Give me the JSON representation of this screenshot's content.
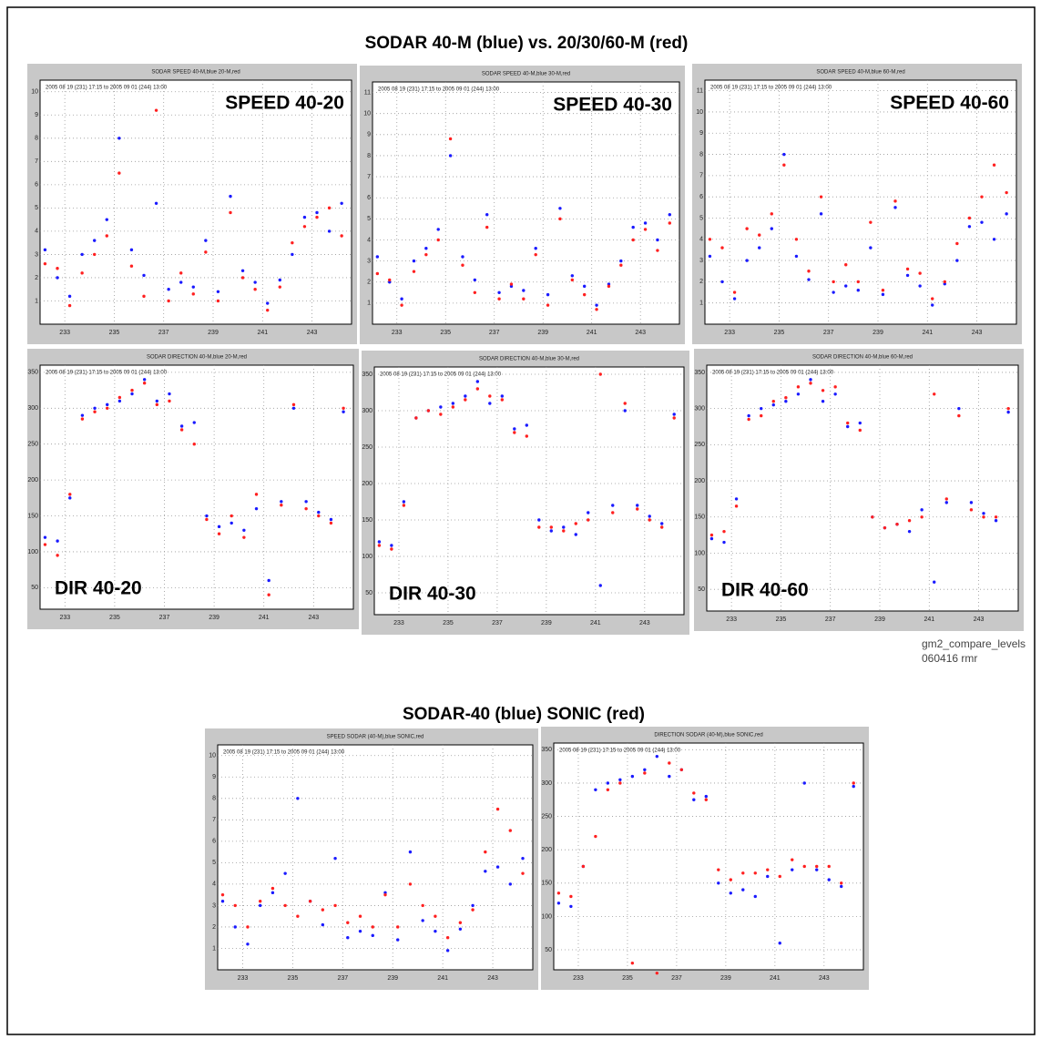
{
  "header": {
    "title": "SODAR 40-M (blue)  vs. 20/30/60-M (red)",
    "title2": "SODAR-40 (blue)  SONIC (red)",
    "note1": "gm2_compare_levels",
    "note2": "060416    rmr"
  },
  "chart_data": [
    {
      "type": "scatter",
      "title": "SODAR SPEED 40-M,blue 20-M,red",
      "subtitle": "2005 08 19 (231) 17:15  to  2005 09 01 (244) 13:00",
      "label": "SPEED 40-20",
      "label_corner": "top-right",
      "grid": true,
      "x": [
        232.2,
        232.7,
        233.2,
        233.7,
        234.2,
        234.7,
        235.2,
        235.7,
        236.2,
        236.7,
        237.2,
        237.7,
        238.2,
        238.7,
        239.2,
        239.7,
        240.2,
        240.7,
        241.2,
        241.7,
        242.2,
        242.7,
        243.2,
        243.7,
        244.2
      ],
      "xlim": [
        232,
        244.6
      ],
      "xticks": [
        233,
        235,
        237,
        239,
        241,
        243
      ],
      "ylim": [
        0,
        10.5
      ],
      "yticks": [
        1,
        2,
        3,
        4,
        5,
        6,
        7,
        8,
        9,
        10
      ],
      "series": [
        {
          "color": "#1a1aff",
          "values": [
            3.2,
            2.0,
            1.2,
            3.0,
            3.6,
            4.5,
            8.0,
            3.2,
            2.1,
            5.2,
            1.5,
            1.8,
            1.6,
            3.6,
            1.4,
            5.5,
            2.3,
            1.8,
            0.9,
            1.9,
            3.0,
            4.6,
            4.8,
            4.0,
            5.2
          ]
        },
        {
          "color": "#ff2020",
          "values": [
            2.6,
            2.4,
            0.8,
            2.2,
            3.0,
            3.8,
            6.5,
            2.5,
            1.2,
            9.2,
            1.0,
            2.2,
            1.3,
            3.1,
            1.0,
            4.8,
            2.0,
            1.5,
            0.6,
            1.6,
            3.5,
            4.2,
            4.6,
            5.0,
            3.8
          ]
        }
      ]
    },
    {
      "type": "scatter",
      "title": "SODAR SPEED 40-M,blue 30-M,red",
      "subtitle": "2005 08 19 (231) 17:15  to  2005 09 01 (244) 13:00",
      "label": "SPEED 40-30",
      "label_corner": "top-right",
      "grid": true,
      "x": [
        232.2,
        232.7,
        233.2,
        233.7,
        234.2,
        234.7,
        235.2,
        235.7,
        236.2,
        236.7,
        237.2,
        237.7,
        238.2,
        238.7,
        239.2,
        239.7,
        240.2,
        240.7,
        241.2,
        241.7,
        242.2,
        242.7,
        243.2,
        243.7,
        244.2
      ],
      "xlim": [
        232,
        244.6
      ],
      "xticks": [
        233,
        235,
        237,
        239,
        241,
        243
      ],
      "ylim": [
        0,
        11.5
      ],
      "yticks": [
        1,
        2,
        3,
        4,
        5,
        6,
        7,
        8,
        9,
        10,
        11
      ],
      "series": [
        {
          "color": "#1a1aff",
          "values": [
            3.2,
            2.0,
            1.2,
            3.0,
            3.6,
            4.5,
            8.0,
            3.2,
            2.1,
            5.2,
            1.5,
            1.8,
            1.6,
            3.6,
            1.4,
            5.5,
            2.3,
            1.8,
            0.9,
            1.9,
            3.0,
            4.6,
            4.8,
            4.0,
            5.2
          ]
        },
        {
          "color": "#ff2020",
          "values": [
            2.4,
            2.1,
            0.9,
            2.5,
            3.3,
            4.0,
            8.8,
            2.8,
            1.5,
            4.6,
            1.2,
            1.9,
            1.2,
            3.3,
            0.9,
            5.0,
            2.1,
            1.4,
            0.7,
            1.8,
            2.8,
            4.0,
            4.5,
            3.5,
            4.8
          ]
        }
      ]
    },
    {
      "type": "scatter",
      "title": "SODAR SPEED 40-M,blue 60-M,red",
      "subtitle": "2005 08 19 (231) 17:15  to  2005 09 01 (244) 13:00",
      "label": "SPEED 40-60",
      "label_corner": "top-right",
      "grid": true,
      "x": [
        232.2,
        232.7,
        233.2,
        233.7,
        234.2,
        234.7,
        235.2,
        235.7,
        236.2,
        236.7,
        237.2,
        237.7,
        238.2,
        238.7,
        239.2,
        239.7,
        240.2,
        240.7,
        241.2,
        241.7,
        242.2,
        242.7,
        243.2,
        243.7,
        244.2
      ],
      "xlim": [
        232,
        244.6
      ],
      "xticks": [
        233,
        235,
        237,
        239,
        241,
        243
      ],
      "ylim": [
        0,
        11.5
      ],
      "yticks": [
        1,
        2,
        3,
        4,
        5,
        6,
        7,
        8,
        9,
        10,
        11
      ],
      "series": [
        {
          "color": "#1a1aff",
          "values": [
            3.2,
            2.0,
            1.2,
            3.0,
            3.6,
            4.5,
            8.0,
            3.2,
            2.1,
            5.2,
            1.5,
            1.8,
            1.6,
            3.6,
            1.4,
            5.5,
            2.3,
            1.8,
            0.9,
            1.9,
            3.0,
            4.6,
            4.8,
            4.0,
            5.2
          ]
        },
        {
          "color": "#ff2020",
          "values": [
            4.0,
            3.6,
            1.5,
            4.5,
            4.2,
            5.2,
            7.5,
            4.0,
            2.5,
            6.0,
            2.0,
            2.8,
            2.0,
            4.8,
            1.6,
            5.8,
            2.6,
            2.4,
            1.2,
            2.0,
            3.8,
            5.0,
            6.0,
            7.5,
            6.2
          ]
        }
      ]
    },
    {
      "type": "scatter",
      "title": "SODAR DIRECTION 40-M,blue 20-M,red",
      "subtitle": "2005 08 19 (231) 17:15  to  2005 09 01 (244) 13:00",
      "label": "DIR 40-20",
      "label_corner": "bottom-left",
      "grid": true,
      "x": [
        232.2,
        232.7,
        233.2,
        233.7,
        234.2,
        234.7,
        235.2,
        235.7,
        236.2,
        236.7,
        237.2,
        237.7,
        238.2,
        238.7,
        239.2,
        239.7,
        240.2,
        240.7,
        241.2,
        241.7,
        242.2,
        242.7,
        243.2,
        243.7,
        244.2
      ],
      "xlim": [
        232,
        244.6
      ],
      "xticks": [
        233,
        235,
        237,
        239,
        241,
        243
      ],
      "ylim": [
        20,
        360
      ],
      "yticks": [
        50,
        100,
        150,
        200,
        250,
        300,
        350
      ],
      "series": [
        {
          "color": "#1a1aff",
          "values": [
            120,
            115,
            175,
            290,
            300,
            305,
            310,
            320,
            340,
            310,
            320,
            275,
            280,
            150,
            135,
            140,
            130,
            160,
            60,
            170,
            300,
            170,
            155,
            145,
            295
          ]
        },
        {
          "color": "#ff2020",
          "values": [
            110,
            95,
            180,
            285,
            295,
            300,
            315,
            325,
            335,
            305,
            310,
            270,
            250,
            145,
            125,
            150,
            120,
            180,
            40,
            165,
            305,
            160,
            150,
            140,
            300
          ]
        }
      ]
    },
    {
      "type": "scatter",
      "title": "SODAR DIRECTION 40-M,blue 30-M,red",
      "subtitle": "2005 08 19 (231) 17:15  to  2005 09 01 (244) 13:00",
      "label": "DIR 40-30",
      "label_corner": "bottom-left",
      "grid": true,
      "x": [
        232.2,
        232.7,
        233.2,
        233.7,
        234.2,
        234.7,
        235.2,
        235.7,
        236.2,
        236.7,
        237.2,
        237.7,
        238.2,
        238.7,
        239.2,
        239.7,
        240.2,
        240.7,
        241.2,
        241.7,
        242.2,
        242.7,
        243.2,
        243.7,
        244.2
      ],
      "xlim": [
        232,
        244.6
      ],
      "xticks": [
        233,
        235,
        237,
        239,
        241,
        243
      ],
      "ylim": [
        20,
        360
      ],
      "yticks": [
        50,
        100,
        150,
        200,
        250,
        300,
        350
      ],
      "series": [
        {
          "color": "#1a1aff",
          "values": [
            120,
            115,
            175,
            290,
            300,
            305,
            310,
            320,
            340,
            310,
            320,
            275,
            280,
            150,
            135,
            140,
            130,
            160,
            60,
            170,
            300,
            170,
            155,
            145,
            295
          ]
        },
        {
          "color": "#ff2020",
          "values": [
            115,
            110,
            170,
            290,
            300,
            295,
            305,
            315,
            330,
            320,
            315,
            270,
            265,
            140,
            140,
            135,
            145,
            150,
            350,
            160,
            310,
            165,
            150,
            140,
            290
          ]
        }
      ]
    },
    {
      "type": "scatter",
      "title": "SODAR DIRECTION 40-M,blue 60-M,red",
      "subtitle": "2005 08 19 (231) 17:15  to  2005 09 01 (244) 13:00",
      "label": "DIR 40-60",
      "label_corner": "bottom-left",
      "grid": true,
      "x": [
        232.2,
        232.7,
        233.2,
        233.7,
        234.2,
        234.7,
        235.2,
        235.7,
        236.2,
        236.7,
        237.2,
        237.7,
        238.2,
        238.7,
        239.2,
        239.7,
        240.2,
        240.7,
        241.2,
        241.7,
        242.2,
        242.7,
        243.2,
        243.7,
        244.2
      ],
      "xlim": [
        232,
        244.6
      ],
      "xticks": [
        233,
        235,
        237,
        239,
        241,
        243
      ],
      "ylim": [
        20,
        360
      ],
      "yticks": [
        50,
        100,
        150,
        200,
        250,
        300,
        350
      ],
      "series": [
        {
          "color": "#1a1aff",
          "values": [
            120,
            115,
            175,
            290,
            300,
            305,
            310,
            320,
            340,
            310,
            320,
            275,
            280,
            150,
            135,
            140,
            130,
            160,
            60,
            170,
            300,
            170,
            155,
            145,
            295
          ]
        },
        {
          "color": "#ff2020",
          "values": [
            125,
            130,
            165,
            285,
            290,
            310,
            315,
            330,
            335,
            325,
            330,
            280,
            270,
            150,
            135,
            140,
            145,
            150,
            320,
            175,
            290,
            160,
            150,
            150,
            300
          ]
        }
      ]
    },
    {
      "type": "scatter",
      "title": "SPEED SODAR (40-M),blue SONIC,red",
      "subtitle": "2005 08 19 (231) 17:15  to  2005 09 01 (244) 13:00",
      "grid": true,
      "x": [
        232.2,
        232.7,
        233.2,
        233.7,
        234.2,
        234.7,
        235.2,
        235.7,
        236.2,
        236.7,
        237.2,
        237.7,
        238.2,
        238.7,
        239.2,
        239.7,
        240.2,
        240.7,
        241.2,
        241.7,
        242.2,
        242.7,
        243.2,
        243.7,
        244.2
      ],
      "xlim": [
        232,
        244.6
      ],
      "xticks": [
        233,
        235,
        237,
        239,
        241,
        243
      ],
      "ylim": [
        0,
        10.5
      ],
      "yticks": [
        1,
        2,
        3,
        4,
        5,
        6,
        7,
        8,
        9,
        10
      ],
      "series": [
        {
          "color": "#1a1aff",
          "values": [
            3.2,
            2.0,
            1.2,
            3.0,
            3.6,
            4.5,
            8.0,
            3.2,
            2.1,
            5.2,
            1.5,
            1.8,
            1.6,
            3.6,
            1.4,
            5.5,
            2.3,
            1.8,
            0.9,
            1.9,
            3.0,
            4.6,
            4.8,
            4.0,
            5.2
          ]
        },
        {
          "color": "#ff2020",
          "values": [
            3.5,
            3.0,
            2.0,
            3.2,
            3.8,
            3.0,
            2.5,
            3.2,
            2.8,
            3.0,
            2.2,
            2.5,
            2.0,
            3.5,
            2.0,
            4.0,
            3.0,
            2.5,
            1.5,
            2.2,
            2.8,
            5.5,
            7.5,
            6.5,
            4.5
          ]
        }
      ]
    },
    {
      "type": "scatter",
      "title": "DIRECTION SODAR (40-M),blue SONIC,red",
      "subtitle": "2005 08 19 (231) 17:15  to  2005 09 01 (244) 13:00",
      "grid": true,
      "x": [
        232.2,
        232.7,
        233.2,
        233.7,
        234.2,
        234.7,
        235.2,
        235.7,
        236.2,
        236.7,
        237.2,
        237.7,
        238.2,
        238.7,
        239.2,
        239.7,
        240.2,
        240.7,
        241.2,
        241.7,
        242.2,
        242.7,
        243.2,
        243.7,
        244.2
      ],
      "xlim": [
        232,
        244.6
      ],
      "xticks": [
        233,
        235,
        237,
        239,
        241,
        243
      ],
      "ylim": [
        20,
        360
      ],
      "yticks": [
        50,
        100,
        150,
        200,
        250,
        300,
        350
      ],
      "series": [
        {
          "color": "#1a1aff",
          "values": [
            120,
            115,
            175,
            290,
            300,
            305,
            310,
            320,
            340,
            310,
            320,
            275,
            280,
            150,
            135,
            140,
            130,
            160,
            60,
            170,
            300,
            170,
            155,
            145,
            295
          ]
        },
        {
          "color": "#ff2020",
          "values": [
            135,
            130,
            175,
            220,
            290,
            300,
            30,
            315,
            15,
            330,
            320,
            285,
            275,
            170,
            155,
            165,
            165,
            170,
            160,
            185,
            175,
            175,
            175,
            150,
            300
          ]
        }
      ]
    }
  ]
}
